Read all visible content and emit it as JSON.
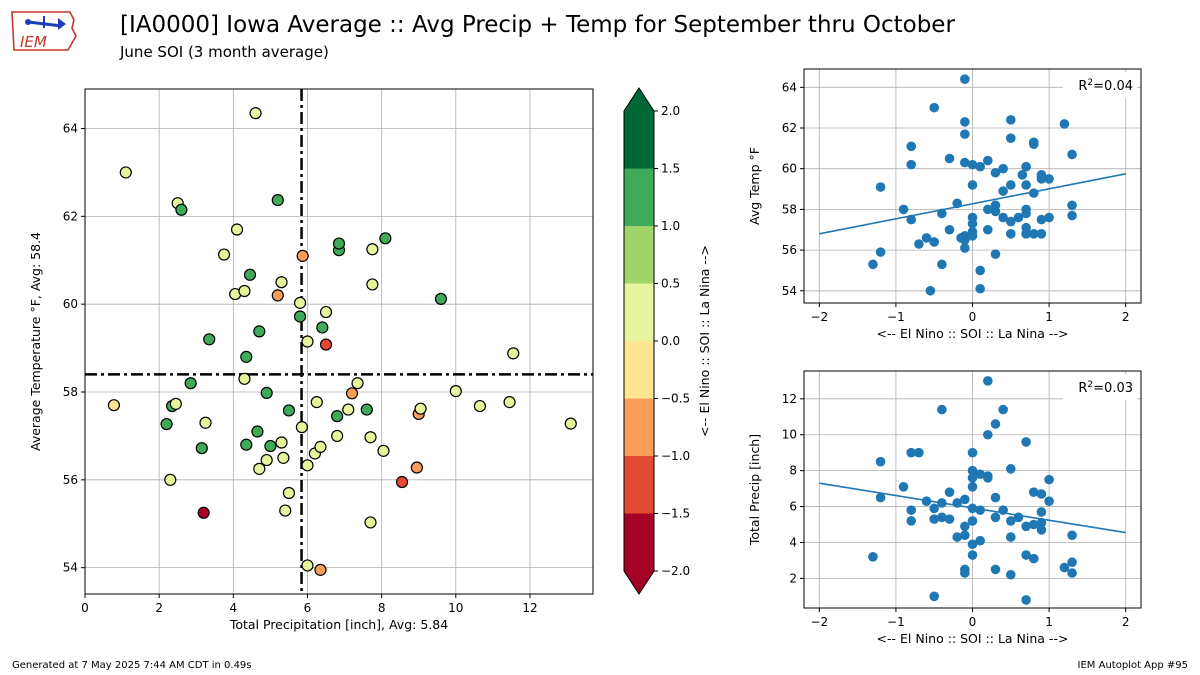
{
  "header": {
    "title": "[IA0000] Iowa Average :: Avg Precip + Temp for September thru October",
    "subtitle": "June SOI (3 month average)",
    "logo_text": "IEM"
  },
  "footer": {
    "generated": "Generated at 7 May 2025 7:44 AM CDT in 0.49s",
    "app": "IEM Autoplot App #95"
  },
  "colors": {
    "soi_bins": [
      "#a50026",
      "#e34a33",
      "#f99e59",
      "#fee591",
      "#e6f49c",
      "#a0d669",
      "#3faa59",
      "#006837"
    ],
    "scatter_blue": "#1f77b4",
    "grid": "#b0b0b0"
  },
  "chart_data": [
    {
      "type": "scatter",
      "xlabel": "Total Precipitation [inch], Avg: 5.84",
      "ylabel": "Average Temperature °F, Avg: 58.4",
      "xlim": [
        0,
        13.7
      ],
      "ylim": [
        53.4,
        64.9
      ],
      "xticks": [
        0,
        2,
        4,
        6,
        8,
        10,
        12
      ],
      "yticks": [
        54,
        56,
        58,
        60,
        62,
        64
      ],
      "grid": true,
      "reference_lines": {
        "x": 5.84,
        "y": 58.4,
        "style": "dash-dot"
      },
      "color_by": "SOI",
      "points": [
        [
          0.78,
          57.7,
          -0.3
        ],
        [
          1.1,
          63.0,
          0.2
        ],
        [
          2.2,
          57.27,
          1.0
        ],
        [
          2.3,
          56.0,
          0.3
        ],
        [
          2.35,
          57.68,
          1.2
        ],
        [
          2.45,
          57.73,
          0.3
        ],
        [
          2.5,
          62.3,
          0.1
        ],
        [
          2.6,
          62.15,
          1.4
        ],
        [
          2.85,
          58.2,
          1.4
        ],
        [
          3.15,
          56.72,
          1.2
        ],
        [
          3.2,
          55.25,
          -1.9
        ],
        [
          3.25,
          57.3,
          0.3
        ],
        [
          3.35,
          59.2,
          1.2
        ],
        [
          3.75,
          61.13,
          0.3
        ],
        [
          4.05,
          60.23,
          0.3
        ],
        [
          4.1,
          61.7,
          0.3
        ],
        [
          4.3,
          60.3,
          0.1
        ],
        [
          4.3,
          58.3,
          0.3
        ],
        [
          4.35,
          56.8,
          1.2
        ],
        [
          4.35,
          58.8,
          1.2
        ],
        [
          4.45,
          60.67,
          1.4
        ],
        [
          4.6,
          64.35,
          0.1
        ],
        [
          4.65,
          57.1,
          1.2
        ],
        [
          4.7,
          59.38,
          1.2
        ],
        [
          4.7,
          56.25,
          0.3
        ],
        [
          4.9,
          56.45,
          0.3
        ],
        [
          4.9,
          57.98,
          1.2
        ],
        [
          5.0,
          56.77,
          1.2
        ],
        [
          5.2,
          62.37,
          1.2
        ],
        [
          5.2,
          60.2,
          -0.7
        ],
        [
          5.3,
          60.5,
          0.3
        ],
        [
          5.3,
          56.85,
          0.3
        ],
        [
          5.35,
          56.5,
          0.3
        ],
        [
          5.4,
          55.3,
          0.3
        ],
        [
          5.5,
          55.7,
          0.3
        ],
        [
          5.5,
          57.58,
          1.2
        ],
        [
          5.8,
          59.72,
          1.2
        ],
        [
          5.8,
          60.03,
          0.3
        ],
        [
          5.85,
          57.2,
          0.3
        ],
        [
          5.87,
          61.1,
          -0.7
        ],
        [
          6.0,
          59.15,
          0.3
        ],
        [
          6.0,
          54.05,
          0.3
        ],
        [
          6.0,
          56.33,
          0.3
        ],
        [
          6.2,
          56.6,
          0.3
        ],
        [
          6.25,
          57.77,
          0.3
        ],
        [
          6.35,
          56.75,
          0.3
        ],
        [
          6.35,
          53.95,
          -0.7
        ],
        [
          6.4,
          59.47,
          1.4
        ],
        [
          6.5,
          59.08,
          -1.2
        ],
        [
          6.5,
          59.82,
          0.3
        ],
        [
          6.8,
          57.45,
          1.2
        ],
        [
          6.8,
          57.0,
          0.3
        ],
        [
          6.85,
          61.23,
          1.2
        ],
        [
          6.85,
          61.38,
          1.2
        ],
        [
          7.1,
          57.6,
          0.3
        ],
        [
          7.2,
          57.97,
          -0.7
        ],
        [
          7.35,
          58.2,
          0.3
        ],
        [
          7.6,
          57.6,
          1.4
        ],
        [
          7.7,
          56.97,
          0.3
        ],
        [
          7.7,
          55.03,
          0.3
        ],
        [
          7.75,
          61.25,
          0.3
        ],
        [
          7.75,
          60.45,
          0.3
        ],
        [
          8.05,
          56.66,
          0.3
        ],
        [
          8.1,
          61.5,
          1.2
        ],
        [
          8.55,
          55.95,
          -1.2
        ],
        [
          8.95,
          56.28,
          -0.7
        ],
        [
          9.0,
          57.5,
          -0.7
        ],
        [
          9.05,
          57.62,
          0.3
        ],
        [
          9.6,
          60.12,
          1.2
        ],
        [
          10.0,
          58.02,
          0.3
        ],
        [
          10.65,
          57.68,
          0.3
        ],
        [
          11.45,
          57.77,
          0.3
        ],
        [
          11.55,
          58.88,
          0.3
        ],
        [
          13.1,
          57.28,
          0.3
        ]
      ]
    },
    {
      "type": "colorbar",
      "label": "<-- El Nino :: SOI :: La Nina -->",
      "ticks": [
        -2.0,
        -1.5,
        -1.0,
        -0.5,
        0.0,
        0.5,
        1.0,
        1.5,
        2.0
      ],
      "tick_labels": [
        "−2.0",
        "−1.5",
        "−1.0",
        "−0.5",
        "0.0",
        "0.5",
        "1.0",
        "1.5",
        "2.0"
      ],
      "range": [
        -2,
        2
      ],
      "extend": "both"
    },
    {
      "type": "scatter",
      "xlabel": "<-- El Nino :: SOI :: La Nina -->",
      "ylabel": "Avg Temp °F",
      "xlim": [
        -2.2,
        2.2
      ],
      "ylim": [
        53.4,
        64.9
      ],
      "xticks": [
        -2,
        -1,
        0,
        1,
        2
      ],
      "xtick_labels": [
        "−2",
        "−1",
        "0",
        "1",
        "2"
      ],
      "yticks": [
        54,
        56,
        58,
        60,
        62,
        64
      ],
      "grid": true,
      "annotation": {
        "prefix": "R",
        "sup": "2",
        "suffix": "=0.04"
      },
      "trendline": {
        "x": [
          -2,
          2
        ],
        "y": [
          56.8,
          59.75
        ]
      },
      "points": [
        [
          -1.3,
          55.3
        ],
        [
          -1.2,
          55.9
        ],
        [
          -1.2,
          59.1
        ],
        [
          -0.9,
          58.0
        ],
        [
          -0.8,
          61.1
        ],
        [
          -0.8,
          60.2
        ],
        [
          -0.8,
          57.5
        ],
        [
          -0.7,
          56.3
        ],
        [
          -0.6,
          56.6
        ],
        [
          -0.5,
          56.4
        ],
        [
          -0.55,
          54.0
        ],
        [
          -0.5,
          63.0
        ],
        [
          -0.4,
          57.8
        ],
        [
          -0.4,
          55.3
        ],
        [
          -0.3,
          60.5
        ],
        [
          -0.3,
          57.0
        ],
        [
          -0.2,
          58.3
        ],
        [
          -0.15,
          56.6
        ],
        [
          -0.1,
          56.5
        ],
        [
          -0.1,
          56.7
        ],
        [
          -0.1,
          56.1
        ],
        [
          -0.1,
          61.7
        ],
        [
          -0.1,
          60.3
        ],
        [
          -0.1,
          62.3
        ],
        [
          -0.1,
          64.4
        ],
        [
          0.0,
          56.9
        ],
        [
          0.0,
          56.7
        ],
        [
          0.0,
          57.3
        ],
        [
          0.0,
          57.6
        ],
        [
          0.0,
          59.2
        ],
        [
          0.0,
          60.2
        ],
        [
          0.1,
          55.0
        ],
        [
          0.1,
          54.1
        ],
        [
          0.1,
          60.1
        ],
        [
          0.2,
          60.4
        ],
        [
          0.2,
          57.0
        ],
        [
          0.2,
          58.0
        ],
        [
          0.3,
          57.9
        ],
        [
          0.3,
          59.8
        ],
        [
          0.3,
          58.2
        ],
        [
          0.3,
          55.8
        ],
        [
          0.4,
          57.6
        ],
        [
          0.4,
          58.9
        ],
        [
          0.4,
          60.0
        ],
        [
          0.5,
          59.2
        ],
        [
          0.5,
          62.4
        ],
        [
          0.5,
          57.4
        ],
        [
          0.5,
          61.5
        ],
        [
          0.5,
          56.8
        ],
        [
          0.6,
          57.6
        ],
        [
          0.65,
          59.7
        ],
        [
          0.7,
          60.1
        ],
        [
          0.7,
          57.1
        ],
        [
          0.7,
          56.8
        ],
        [
          0.7,
          58.0
        ],
        [
          0.7,
          59.2
        ],
        [
          0.7,
          57.8
        ],
        [
          0.8,
          61.3
        ],
        [
          0.8,
          61.2
        ],
        [
          0.8,
          58.8
        ],
        [
          0.8,
          56.8
        ],
        [
          0.9,
          59.6
        ],
        [
          0.9,
          57.5
        ],
        [
          0.9,
          59.5
        ],
        [
          0.9,
          59.7
        ],
        [
          0.9,
          56.8
        ],
        [
          1.0,
          57.6
        ],
        [
          1.0,
          59.5
        ],
        [
          1.2,
          62.2
        ],
        [
          1.3,
          60.7
        ],
        [
          1.3,
          58.2
        ],
        [
          1.3,
          57.7
        ]
      ]
    },
    {
      "type": "scatter",
      "xlabel": "<-- El Nino :: SOI :: La Nina -->",
      "ylabel": "Total Precip [inch]",
      "xlim": [
        -2.2,
        2.2
      ],
      "ylim": [
        0.35,
        13.55
      ],
      "xticks": [
        -2,
        -1,
        0,
        1,
        2
      ],
      "xtick_labels": [
        "−2",
        "−1",
        "0",
        "1",
        "2"
      ],
      "yticks": [
        2,
        4,
        6,
        8,
        10,
        12
      ],
      "grid": true,
      "annotation": {
        "prefix": "R",
        "sup": "2",
        "suffix": "=0.03"
      },
      "trendline": {
        "x": [
          -2,
          2
        ],
        "y": [
          7.3,
          4.55
        ]
      },
      "points": [
        [
          -1.3,
          3.2
        ],
        [
          -1.2,
          8.5
        ],
        [
          -1.2,
          6.5
        ],
        [
          -0.9,
          7.1
        ],
        [
          -0.8,
          9.0
        ],
        [
          -0.8,
          5.8
        ],
        [
          -0.8,
          5.2
        ],
        [
          -0.7,
          9.0
        ],
        [
          -0.6,
          6.3
        ],
        [
          -0.5,
          5.3
        ],
        [
          -0.5,
          5.9
        ],
        [
          -0.5,
          1.0
        ],
        [
          -0.4,
          11.4
        ],
        [
          -0.4,
          6.2
        ],
        [
          -0.4,
          5.4
        ],
        [
          -0.3,
          6.8
        ],
        [
          -0.3,
          5.3
        ],
        [
          -0.2,
          6.2
        ],
        [
          -0.2,
          4.3
        ],
        [
          -0.1,
          6.4
        ],
        [
          -0.1,
          4.9
        ],
        [
          -0.1,
          4.4
        ],
        [
          -0.1,
          2.5
        ],
        [
          -0.1,
          2.3
        ],
        [
          0.0,
          9.0
        ],
        [
          0.0,
          8.0
        ],
        [
          0.0,
          7.6
        ],
        [
          0.0,
          5.9
        ],
        [
          0.0,
          5.2
        ],
        [
          0.0,
          3.9
        ],
        [
          0.0,
          3.3
        ],
        [
          0.0,
          7.1
        ],
        [
          0.1,
          5.8
        ],
        [
          0.1,
          4.1
        ],
        [
          0.1,
          7.8
        ],
        [
          0.2,
          13.0
        ],
        [
          0.2,
          10.0
        ],
        [
          0.2,
          7.7
        ],
        [
          0.2,
          7.6
        ],
        [
          0.3,
          10.6
        ],
        [
          0.3,
          6.5
        ],
        [
          0.3,
          5.4
        ],
        [
          0.3,
          2.5
        ],
        [
          0.4,
          11.4
        ],
        [
          0.4,
          5.8
        ],
        [
          0.5,
          8.1
        ],
        [
          0.5,
          5.2
        ],
        [
          0.5,
          4.3
        ],
        [
          0.5,
          2.2
        ],
        [
          0.6,
          5.4
        ],
        [
          0.7,
          9.6
        ],
        [
          0.7,
          4.9
        ],
        [
          0.7,
          3.3
        ],
        [
          0.7,
          0.8
        ],
        [
          0.8,
          6.8
        ],
        [
          0.8,
          5.0
        ],
        [
          0.8,
          3.1
        ],
        [
          0.9,
          6.7
        ],
        [
          0.9,
          5.7
        ],
        [
          0.9,
          5.1
        ],
        [
          0.9,
          4.7
        ],
        [
          1.0,
          7.5
        ],
        [
          1.0,
          6.3
        ],
        [
          1.2,
          2.6
        ],
        [
          1.3,
          4.4
        ],
        [
          1.3,
          2.9
        ],
        [
          1.3,
          2.3
        ]
      ]
    }
  ]
}
